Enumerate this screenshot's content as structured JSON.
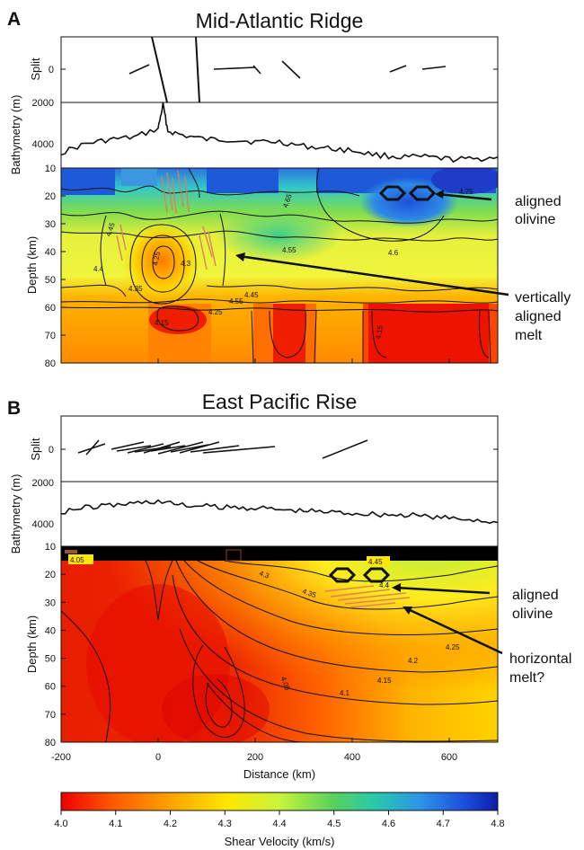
{
  "colors": {
    "scale_stops": [
      "#ee0000",
      "#ff5a00",
      "#ffa200",
      "#ffe600",
      "#c8f53c",
      "#5ad25a",
      "#28c8aa",
      "#2d96e6",
      "#1e50dc",
      "#0a1eaa"
    ],
    "vertical_split_lines": "#111111",
    "melt_marks": "#e07a5f"
  },
  "panels": [
    {
      "letter": "A",
      "title": "Mid-Atlantic Ridge",
      "split_ylabel": "Split",
      "split_tick": "0",
      "bathy_ylabel": "Bathymetry (m)",
      "bathy_ticks": [
        "2000",
        "4000"
      ],
      "depth_ylabel": "Depth (km)",
      "depth_ticks": [
        "10",
        "20",
        "30",
        "40",
        "50",
        "60",
        "70",
        "80"
      ],
      "annotations": [
        {
          "lines": [
            "aligned",
            "olivine"
          ]
        },
        {
          "lines": [
            "vertically",
            "aligned",
            "melt"
          ]
        }
      ],
      "contour_labels": [
        "4.75",
        "4.65",
        "4.45",
        "4.55",
        "4.6",
        "4.4",
        "4.35",
        "4.3",
        "4.25",
        "4.45",
        "4.55",
        "4.15",
        "4.25",
        "4.15"
      ]
    },
    {
      "letter": "B",
      "title": "East Pacific Rise",
      "split_ylabel": "Split",
      "split_tick": "0",
      "bathy_ylabel": "Bathymetry (m)",
      "bathy_ticks": [
        "2000",
        "4000"
      ],
      "depth_ylabel": "Depth (km)",
      "depth_ticks": [
        "10",
        "20",
        "30",
        "40",
        "50",
        "60",
        "70",
        "80"
      ],
      "annotations": [
        {
          "lines": [
            "aligned",
            "olivine"
          ]
        },
        {
          "lines": [
            "horizontal",
            "melt?"
          ]
        }
      ],
      "contour_labels": [
        "4.05",
        "4.45",
        "4.4",
        "4.35",
        "4.3",
        "4.25",
        "4.2",
        "4.15",
        "4.1",
        "4.05"
      ]
    }
  ],
  "x_axis": {
    "label": "Distance (km)",
    "ticks": [
      "-200",
      "0",
      "200",
      "400",
      "600"
    ],
    "range": [
      -200,
      700
    ]
  },
  "colorbar": {
    "label": "Shear Velocity (km/s)",
    "ticks": [
      "4.0",
      "4.1",
      "4.2",
      "4.3",
      "4.4",
      "4.5",
      "4.6",
      "4.7",
      "4.8"
    ],
    "range": [
      4.0,
      4.8
    ]
  },
  "chart_data": [
    {
      "type": "heatmap",
      "title": "Mid-Atlantic Ridge",
      "xlabel": "Distance (km)",
      "ylabel": "Depth (km)",
      "xlim": [
        -200,
        700
      ],
      "ylim": [
        80,
        10
      ],
      "zlim": [
        4.0,
        4.8
      ],
      "bathymetry_ylim": [
        2000,
        5000
      ],
      "bathymetry_x": [
        -200,
        -150,
        -100,
        -50,
        0,
        10,
        20,
        50,
        100,
        150,
        200,
        250,
        300,
        350,
        400,
        450,
        500,
        550,
        600,
        650,
        700
      ],
      "bathymetry_m": [
        4300,
        3900,
        3700,
        3600,
        3200,
        2100,
        3300,
        3500,
        3700,
        3700,
        3800,
        3800,
        4000,
        4100,
        4200,
        4400,
        4500,
        4500,
        4600,
        4600,
        4500
      ],
      "velocity_profiles": [
        {
          "x": -200,
          "depth": [
            10,
            20,
            30,
            40,
            50,
            60,
            70,
            80
          ],
          "vs": [
            4.7,
            4.55,
            4.4,
            4.32,
            4.32,
            4.2,
            4.18,
            4.18
          ]
        },
        {
          "x": 0,
          "depth": [
            10,
            20,
            30,
            40,
            50,
            60,
            70,
            80
          ],
          "vs": [
            4.75,
            4.5,
            4.35,
            4.25,
            4.3,
            4.12,
            4.15,
            4.18
          ]
        },
        {
          "x": 150,
          "depth": [
            10,
            20,
            30,
            40,
            50,
            60,
            70,
            80
          ],
          "vs": [
            4.7,
            4.55,
            4.45,
            4.45,
            4.45,
            4.2,
            4.18,
            4.18
          ]
        },
        {
          "x": 300,
          "depth": [
            10,
            20,
            30,
            40,
            50,
            60,
            70,
            80
          ],
          "vs": [
            4.75,
            4.58,
            4.5,
            4.52,
            4.55,
            4.12,
            4.05,
            4.1
          ]
        },
        {
          "x": 450,
          "depth": [
            10,
            20,
            30,
            40,
            50,
            60,
            70,
            80
          ],
          "vs": [
            4.75,
            4.7,
            4.62,
            4.52,
            4.5,
            4.1,
            4.05,
            4.05
          ]
        },
        {
          "x": 600,
          "depth": [
            10,
            20,
            30,
            40,
            50,
            60,
            70,
            80
          ],
          "vs": [
            4.78,
            4.7,
            4.6,
            4.55,
            4.5,
            4.12,
            4.05,
            4.08
          ]
        },
        {
          "x": 700,
          "depth": [
            10,
            20,
            30,
            40,
            50,
            60,
            70,
            80
          ],
          "vs": [
            4.8,
            4.72,
            4.6,
            4.55,
            4.45,
            4.12,
            4.05,
            4.08
          ]
        }
      ]
    },
    {
      "type": "heatmap",
      "title": "East Pacific Rise",
      "xlabel": "Distance (km)",
      "ylabel": "Depth (km)",
      "xlim": [
        -200,
        700
      ],
      "ylim": [
        80,
        10
      ],
      "zlim": [
        4.0,
        4.8
      ],
      "bathymetry_ylim": [
        2000,
        5000
      ],
      "bathymetry_x": [
        -200,
        -150,
        -100,
        -50,
        0,
        50,
        100,
        150,
        200,
        250,
        300,
        350,
        400,
        450,
        500,
        550,
        600,
        650,
        700
      ],
      "bathymetry_m": [
        3400,
        3200,
        3100,
        3000,
        2900,
        3100,
        3150,
        3200,
        3200,
        3300,
        3350,
        3400,
        3450,
        3500,
        3550,
        3600,
        3700,
        3750,
        3900
      ],
      "velocity_profiles": [
        {
          "x": -200,
          "depth": [
            10,
            20,
            30,
            40,
            50,
            60,
            70,
            80
          ],
          "vs": [
            4.05,
            4.08,
            4.07,
            4.05,
            4.05,
            4.05,
            4.05,
            4.05
          ]
        },
        {
          "x": 0,
          "depth": [
            10,
            20,
            30,
            40,
            50,
            60,
            70,
            80
          ],
          "vs": [
            4.05,
            4.05,
            4.02,
            4.02,
            4.02,
            4.02,
            4.02,
            4.02
          ]
        },
        {
          "x": 200,
          "depth": [
            10,
            20,
            30,
            40,
            50,
            60,
            70,
            80
          ],
          "vs": [
            4.3,
            4.2,
            4.1,
            4.05,
            4.05,
            4.05,
            4.05,
            4.05
          ]
        },
        {
          "x": 400,
          "depth": [
            10,
            20,
            30,
            40,
            50,
            60,
            70,
            80
          ],
          "vs": [
            4.45,
            4.4,
            4.3,
            4.22,
            4.15,
            4.1,
            4.08,
            4.07
          ]
        },
        {
          "x": 550,
          "depth": [
            10,
            20,
            30,
            40,
            50,
            60,
            70,
            80
          ],
          "vs": [
            4.55,
            4.45,
            4.38,
            4.28,
            4.2,
            4.15,
            4.1,
            4.08
          ]
        },
        {
          "x": 700,
          "depth": [
            10,
            20,
            30,
            40,
            50,
            60,
            70,
            80
          ],
          "vs": [
            4.55,
            4.5,
            4.42,
            4.32,
            4.25,
            4.18,
            4.12,
            4.1
          ]
        }
      ]
    }
  ]
}
